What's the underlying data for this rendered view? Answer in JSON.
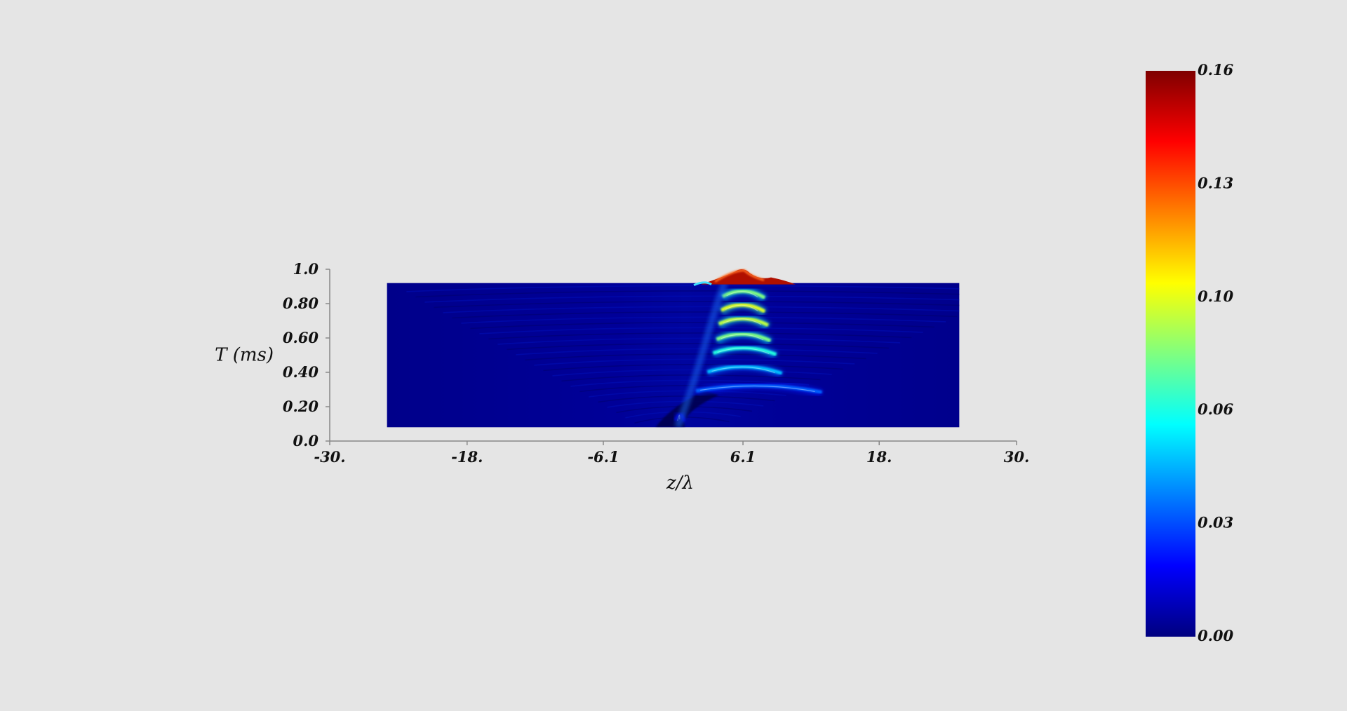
{
  "chart_data": {
    "type": "heatmap",
    "xlabel": "z/λ",
    "ylabel": "T (ms)",
    "x_ticks": [
      "-30.",
      "-18.",
      "-6.1",
      "6.1",
      "18.",
      "30."
    ],
    "x_tick_values": [
      -30,
      -18,
      -6.1,
      6.1,
      18,
      30
    ],
    "y_ticks": [
      "0.0",
      "0.20",
      "0.40",
      "0.60",
      "0.80",
      "1.0"
    ],
    "y_tick_values": [
      0,
      0.2,
      0.4,
      0.6,
      0.8,
      1.0
    ],
    "xlim": [
      -30,
      30
    ],
    "ylim": [
      0,
      1.0
    ],
    "data_extent": {
      "z": [
        -25,
        25
      ],
      "T": [
        0.08,
        0.92
      ]
    },
    "source_z": 0.3,
    "colorscale": [
      "#00007f",
      "#0000ff",
      "#00ffff",
      "#ffff00",
      "#ff0000",
      "#7f0000"
    ],
    "colorbar": {
      "min": 0.0,
      "max": 0.16,
      "ticks": [
        "0.00",
        "0.03",
        "0.06",
        "0.10",
        "0.13",
        "0.16"
      ],
      "tick_values": [
        0.0,
        0.032,
        0.064,
        0.096,
        0.128,
        0.16
      ]
    },
    "grid": false,
    "legend": "colorbar-right"
  }
}
